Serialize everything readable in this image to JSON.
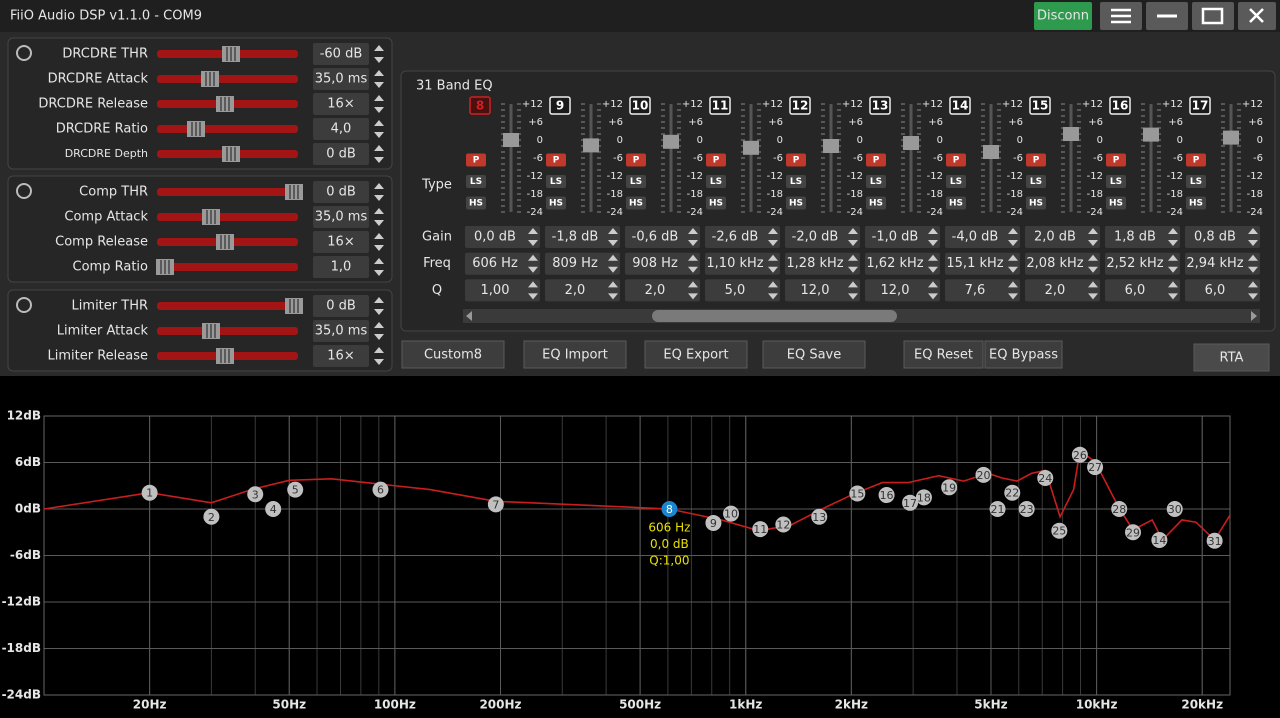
{
  "window": {
    "title": "FiiO Audio DSP v1.1.0 - COM9",
    "buttons": [
      "Disconn"
    ]
  },
  "dynamics": [
    {
      "rows": [
        {
          "label": "DRCDRE THR",
          "value": "-60 dB"
        },
        {
          "label": "DRCDRE Attack",
          "value": "35,0 ms"
        },
        {
          "label": "DRCDRE Release",
          "value": "16×"
        },
        {
          "label": "DRCDRE Ratio",
          "value": "4,0"
        },
        {
          "label": "DRCDRE Depth",
          "value": "0 dB"
        }
      ]
    },
    {
      "rows": [
        {
          "label": "Comp THR",
          "value": "0 dB"
        },
        {
          "label": "Comp Attack",
          "value": "35,0 ms"
        },
        {
          "label": "Comp Release",
          "value": "16×"
        },
        {
          "label": "Comp Ratio",
          "value": "1,0"
        }
      ]
    },
    {
      "rows": [
        {
          "label": "Limiter THR",
          "value": "0 dB"
        },
        {
          "label": "Limiter Attack",
          "value": "35,0 ms"
        },
        {
          "label": "Limiter Release",
          "value": "16×"
        }
      ]
    }
  ],
  "eq": {
    "title": "31 Band EQ",
    "scale": [
      "+12",
      "+6",
      "0",
      "-6",
      "-12",
      "-18",
      "-24"
    ],
    "type_label": "Type",
    "row_labels": [
      "Gain",
      "Freq",
      "Q"
    ],
    "badges": [
      "P",
      "LS",
      "HS"
    ],
    "bands": [
      {
        "number": "8",
        "gain": "0,0 dB",
        "freq": "606 Hz",
        "q": "1,00"
      },
      {
        "number": "9",
        "gain": "-1,8 dB",
        "freq": "809 Hz",
        "q": "2,0"
      },
      {
        "number": "10",
        "gain": "-0,6 dB",
        "freq": "908 Hz",
        "q": "2,0"
      },
      {
        "number": "11",
        "gain": "-2,6 dB",
        "freq": "1,10 kHz",
        "q": "5,0"
      },
      {
        "number": "12",
        "gain": "-2,0 dB",
        "freq": "1,28 kHz",
        "q": "12,0"
      },
      {
        "number": "13",
        "gain": "-1,0 dB",
        "freq": "1,62 kHz",
        "q": "12,0"
      },
      {
        "number": "14",
        "gain": "-4,0 dB",
        "freq": "15,1 kHz",
        "q": "7,6"
      },
      {
        "number": "15",
        "gain": "2,0 dB",
        "freq": "2,08 kHz",
        "q": "2,0"
      },
      {
        "number": "16",
        "gain": "1,8 dB",
        "freq": "2,52 kHz",
        "q": "6,0"
      },
      {
        "number": "17",
        "gain": "0,8 dB",
        "freq": "2,94 kHz",
        "q": "6,0"
      }
    ]
  },
  "buttons": [
    "Custom8",
    "EQ Import",
    "EQ Export",
    "EQ Save",
    "EQ Reset",
    "EQ Bypass",
    "RTA"
  ],
  "chart_data": {
    "type": "line",
    "log_x": true,
    "grid": true,
    "xlim": [
      10,
      24000
    ],
    "ylim": [
      -24,
      12
    ],
    "xticks": [
      {
        "value": 20,
        "label": "20Hz"
      },
      {
        "value": 50,
        "label": "50Hz"
      },
      {
        "value": 100,
        "label": "100Hz"
      },
      {
        "value": 200,
        "label": "200Hz"
      },
      {
        "value": 500,
        "label": "500Hz"
      },
      {
        "value": 1000,
        "label": "1kHz"
      },
      {
        "value": 2000,
        "label": "2kHz"
      },
      {
        "value": 5000,
        "label": "5kHz"
      },
      {
        "value": 10000,
        "label": "10kHz"
      },
      {
        "value": 20000,
        "label": "20kHz"
      }
    ],
    "yticks": [
      {
        "value": 12,
        "label": "12dB"
      },
      {
        "value": 6,
        "label": "6dB"
      },
      {
        "value": 0,
        "label": "0dB"
      },
      {
        "value": -6,
        "label": "-6dB"
      },
      {
        "value": -12,
        "label": "-12dB"
      },
      {
        "value": -18,
        "label": "-18dB"
      },
      {
        "value": -24,
        "label": "-24dB"
      }
    ],
    "response": {
      "color": "#c81e1e",
      "x": [
        10,
        20,
        30,
        39,
        50,
        66,
        91,
        126,
        194,
        390,
        606,
        850,
        1090,
        1340,
        1650,
        2020,
        2450,
        2900,
        3550,
        4180,
        4900,
        5380,
        5930,
        6520,
        7150,
        7870,
        8600,
        8960,
        9900,
        11600,
        12700,
        14400,
        15400,
        17500,
        19200,
        21700,
        24000
      ],
      "values": [
        0,
        2.1,
        0.8,
        2.5,
        3.7,
        3.9,
        3.2,
        2.5,
        1.0,
        0.4,
        0,
        -1.4,
        -2.8,
        -2.1,
        0,
        1.9,
        3.4,
        3.4,
        4.3,
        3.6,
        4.6,
        4.0,
        3.6,
        4.6,
        5.0,
        -1.0,
        2.5,
        7.5,
        6.1,
        0.1,
        -2.7,
        -1.4,
        -4.0,
        -1.4,
        -1.7,
        -4.0,
        -0.8
      ]
    },
    "nodes": {
      "color": "#c0c0c0",
      "selected_color": "#1a86d0",
      "selected": 7,
      "labels": [
        "1",
        "2",
        "3",
        "4",
        "5",
        "6",
        "7",
        "8",
        "9",
        "10",
        "11",
        "12",
        "13",
        "14",
        "15",
        "16",
        "17",
        "18",
        "19",
        "20",
        "21",
        "22",
        "23",
        "24",
        "25",
        "26",
        "27",
        "28",
        "29",
        "30",
        "31"
      ],
      "x": [
        20,
        30,
        40,
        45,
        52,
        91,
        194,
        606,
        809,
        908,
        1100,
        1280,
        1620,
        15100,
        2080,
        2520,
        2940,
        3220,
        3800,
        4760,
        5220,
        5750,
        6320,
        7140,
        7830,
        8960,
        9900,
        11600,
        12700,
        16700,
        21700
      ],
      "values": [
        2.1,
        -1.0,
        1.9,
        0,
        2.5,
        2.5,
        0.6,
        0,
        -1.8,
        -0.6,
        -2.6,
        -2.0,
        -1.0,
        -4.0,
        2.0,
        1.8,
        0.8,
        1.5,
        2.8,
        4.4,
        0,
        2.1,
        0,
        4.0,
        -2.8,
        7.0,
        5.4,
        0,
        -3.0,
        0,
        -4.1
      ]
    },
    "annotation": [
      "606 Hz",
      "0,0 dB",
      "Q:1,00"
    ]
  }
}
